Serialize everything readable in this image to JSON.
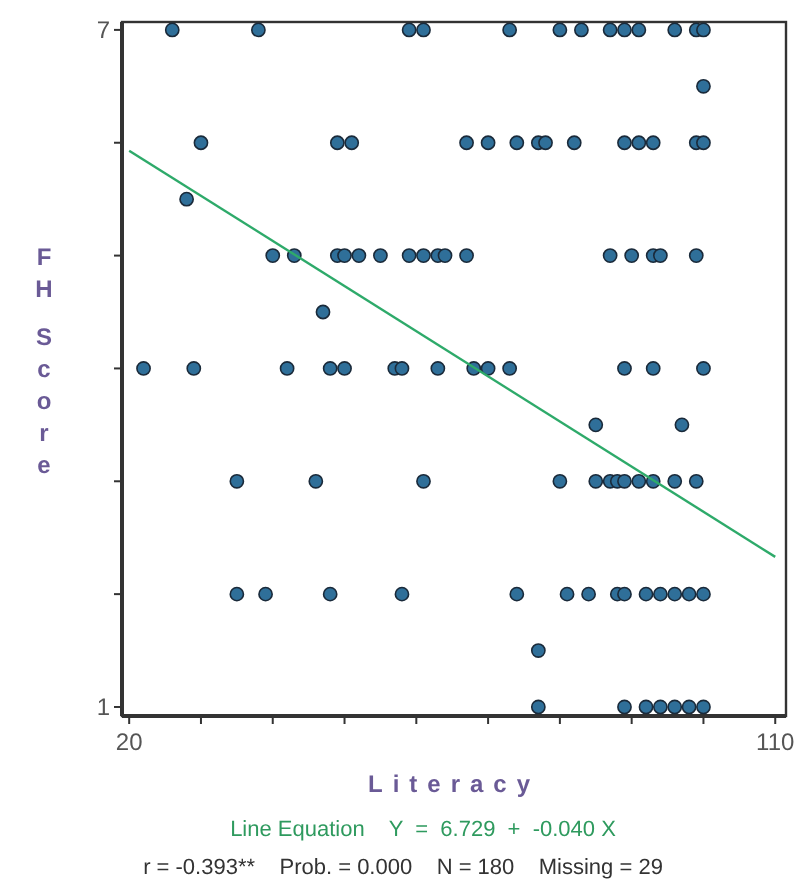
{
  "chart_data": {
    "type": "scatter",
    "xlabel": "Literacy",
    "ylabel": "FH Score",
    "xlim": [
      19,
      111.5
    ],
    "ylim": [
      0.92,
      7.07
    ],
    "xticks": [
      20,
      {
        "value": 30,
        "label": null
      },
      {
        "value": 40,
        "label": null
      },
      {
        "value": 50,
        "label": null
      },
      {
        "value": 60,
        "label": null
      },
      {
        "value": 70,
        "label": null
      },
      {
        "value": 80,
        "label": null
      },
      {
        "value": 90,
        "label": null
      },
      {
        "value": 100,
        "label": null
      },
      110
    ],
    "yticks": [
      1,
      {
        "value": 2,
        "label": null
      },
      {
        "value": 3,
        "label": null
      },
      {
        "value": 4,
        "label": null
      },
      {
        "value": 5,
        "label": null
      },
      {
        "value": 6,
        "label": null
      },
      7
    ],
    "grid": false,
    "series": [
      {
        "color": "#2f6f99",
        "marker": "circle",
        "x": [
          26,
          38,
          59,
          61,
          73,
          80,
          83,
          87,
          89,
          91,
          96,
          99,
          100,
          100,
          30,
          49,
          51,
          67,
          70,
          74,
          77,
          78,
          82,
          89,
          91,
          93,
          99,
          100,
          28,
          40,
          43,
          49,
          50,
          52,
          55,
          59,
          61,
          63,
          64,
          67,
          87,
          90,
          93,
          94,
          99,
          47,
          22,
          29,
          42,
          48,
          50,
          57,
          58,
          63,
          68,
          70,
          73,
          89,
          93,
          100,
          85,
          97,
          35,
          46,
          61,
          80,
          85,
          87,
          88,
          89,
          91,
          93,
          96,
          99,
          35,
          39,
          48,
          58,
          74,
          81,
          84,
          88,
          89,
          92,
          94,
          96,
          98,
          100,
          77,
          77,
          89,
          92,
          94,
          96,
          98,
          100
        ],
        "values": [
          7,
          7,
          7,
          7,
          7,
          7,
          7,
          7,
          7,
          7,
          7,
          7,
          7,
          6.5,
          6,
          6,
          6,
          6,
          6,
          6,
          6,
          6,
          6,
          6,
          6,
          6,
          6,
          6,
          5.5,
          5,
          5,
          5,
          5,
          5,
          5,
          5,
          5,
          5,
          5,
          5,
          5,
          5,
          5,
          5,
          5,
          4.5,
          4,
          4,
          4,
          4,
          4,
          4,
          4,
          4,
          4,
          4,
          4,
          4,
          4,
          4,
          3.5,
          3.5,
          3,
          3,
          3,
          3,
          3,
          3,
          3,
          3,
          3,
          3,
          3,
          3,
          2,
          2,
          2,
          2,
          2,
          2,
          2,
          2,
          2,
          2,
          2,
          2,
          2,
          2,
          1.5,
          1,
          1,
          1,
          1,
          1,
          1,
          1
        ]
      },
      {
        "type": "line",
        "color": "#2eaa6a",
        "marker": "none",
        "x": [
          20,
          110
        ],
        "values": [
          5.93,
          2.33
        ]
      }
    ],
    "annotations": [
      "Line Equation    Y  =  6.729  +  -0.040 X",
      "r = -0.393**    Prob. = 0.000    N = 180    Missing = 29"
    ]
  }
}
